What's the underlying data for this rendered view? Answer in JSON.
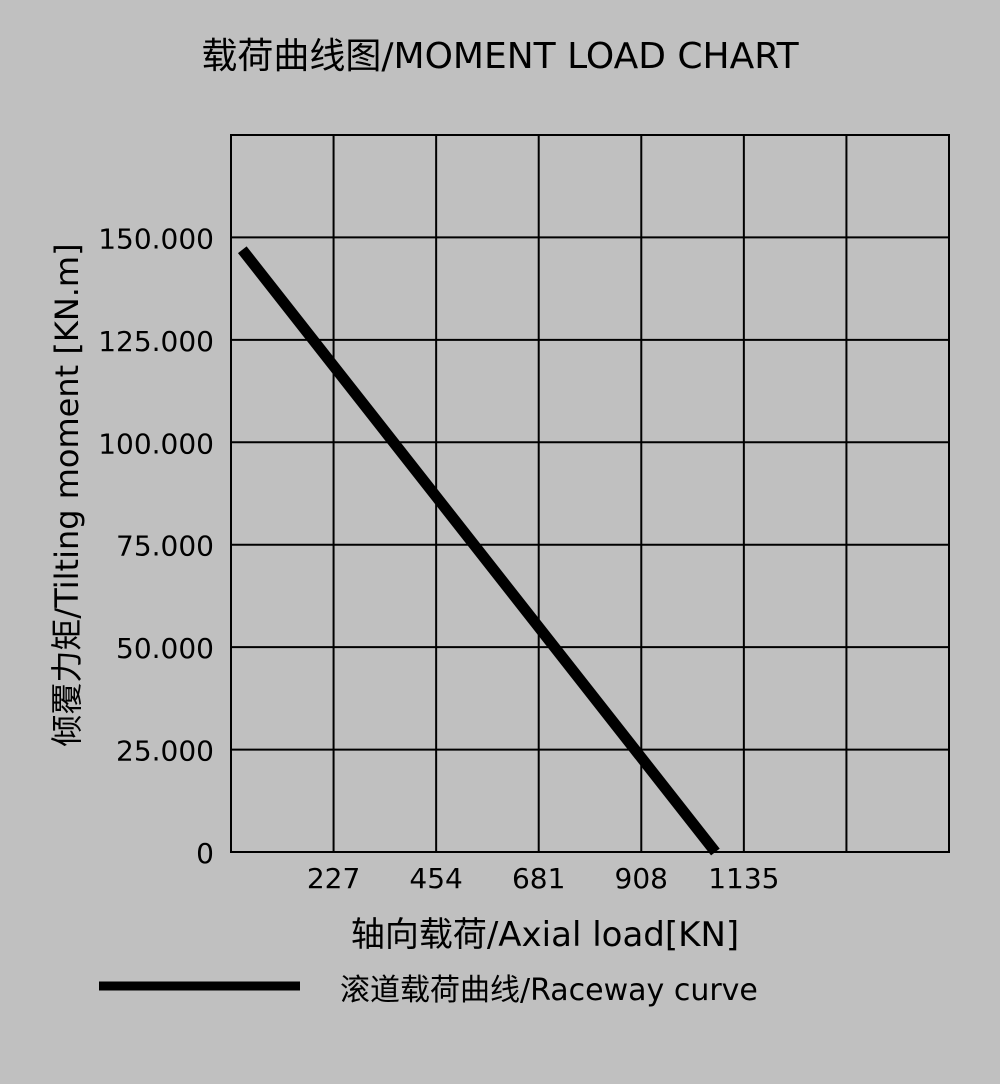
{
  "chart_data": {
    "type": "line",
    "title": "载荷曲线图/MOMENT LOAD CHART",
    "xlabel": "轴向载荷/Axial load[KN]",
    "ylabel": "倾覆力矩/Tilting moment [KN.m]",
    "xlim": [
      0,
      1589
    ],
    "ylim": [
      0,
      175
    ],
    "x_ticks": [
      227,
      454,
      681,
      908,
      1135
    ],
    "x_tick_labels": [
      "227",
      "454",
      "681",
      "908",
      "1135"
    ],
    "y_ticks": [
      0,
      25,
      50,
      75,
      100,
      125,
      150
    ],
    "y_tick_labels": [
      "0",
      "25.000",
      "50.000",
      "75.000",
      "100.000",
      "125.000",
      "150.000"
    ],
    "grid": true,
    "legend_position": "bottom",
    "series": [
      {
        "name": "滚道载荷曲线/Raceway curve",
        "color": "#000000",
        "points": [
          [
            25,
            147
          ],
          [
            1072,
            0
          ]
        ]
      }
    ]
  },
  "colors": {
    "background": "#c0c0c0",
    "line": "#000000"
  }
}
